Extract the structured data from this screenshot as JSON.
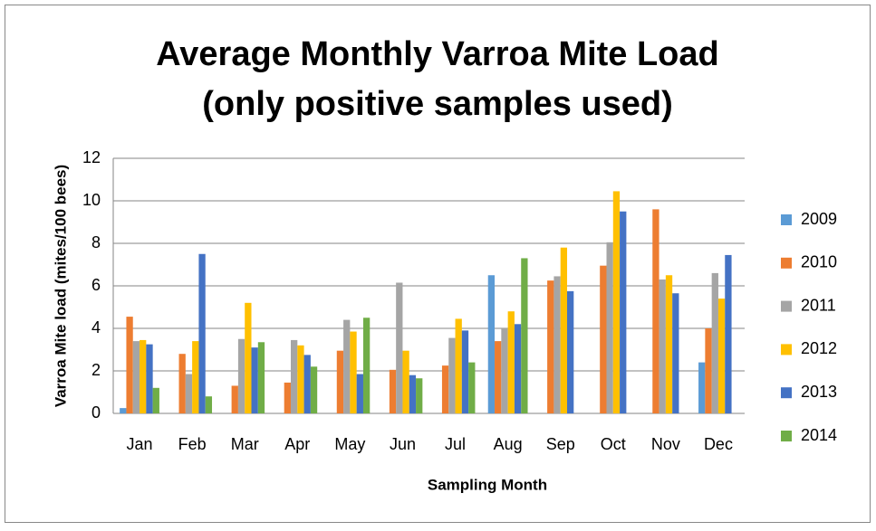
{
  "chart_data": {
    "type": "bar",
    "title": "Average Monthly Varroa Mite Load",
    "subtitle": "(only positive samples used)",
    "x_label": "Sampling Month",
    "y_label": "Varroa Mite load (mites/100 bees)",
    "categories": [
      "Jan",
      "Feb",
      "Mar",
      "Apr",
      "May",
      "Jun",
      "Jul",
      "Aug",
      "Sep",
      "Oct",
      "Nov",
      "Dec"
    ],
    "series": [
      {
        "name": "2009",
        "color": "#5b9bd5",
        "values": [
          0.25,
          null,
          null,
          null,
          null,
          null,
          null,
          6.5,
          null,
          null,
          null,
          2.4
        ]
      },
      {
        "name": "2010",
        "color": "#ed7d31",
        "values": [
          4.55,
          2.8,
          1.3,
          1.45,
          2.95,
          2.05,
          2.25,
          3.4,
          6.25,
          6.95,
          9.6,
          4.0
        ]
      },
      {
        "name": "2011",
        "color": "#a5a5a5",
        "values": [
          3.4,
          1.85,
          3.5,
          3.45,
          4.4,
          6.15,
          3.55,
          4.0,
          6.45,
          8.05,
          6.3,
          6.6
        ]
      },
      {
        "name": "2012",
        "color": "#ffc000",
        "values": [
          3.45,
          3.4,
          5.2,
          3.2,
          3.85,
          2.95,
          4.45,
          4.8,
          7.8,
          10.45,
          6.5,
          5.4
        ]
      },
      {
        "name": "2013",
        "color": "#4472c4",
        "values": [
          3.25,
          7.5,
          3.1,
          2.75,
          1.85,
          1.8,
          3.9,
          4.2,
          5.75,
          9.5,
          5.65,
          7.45
        ]
      },
      {
        "name": "2014",
        "color": "#70ad47",
        "values": [
          1.2,
          0.8,
          3.35,
          2.2,
          4.5,
          1.65,
          2.4,
          7.3,
          null,
          null,
          null,
          null
        ]
      }
    ],
    "ylim": [
      0,
      12
    ],
    "yticks": [
      0,
      2,
      4,
      6,
      8,
      10,
      12
    ],
    "grid": true,
    "legend": "right"
  }
}
